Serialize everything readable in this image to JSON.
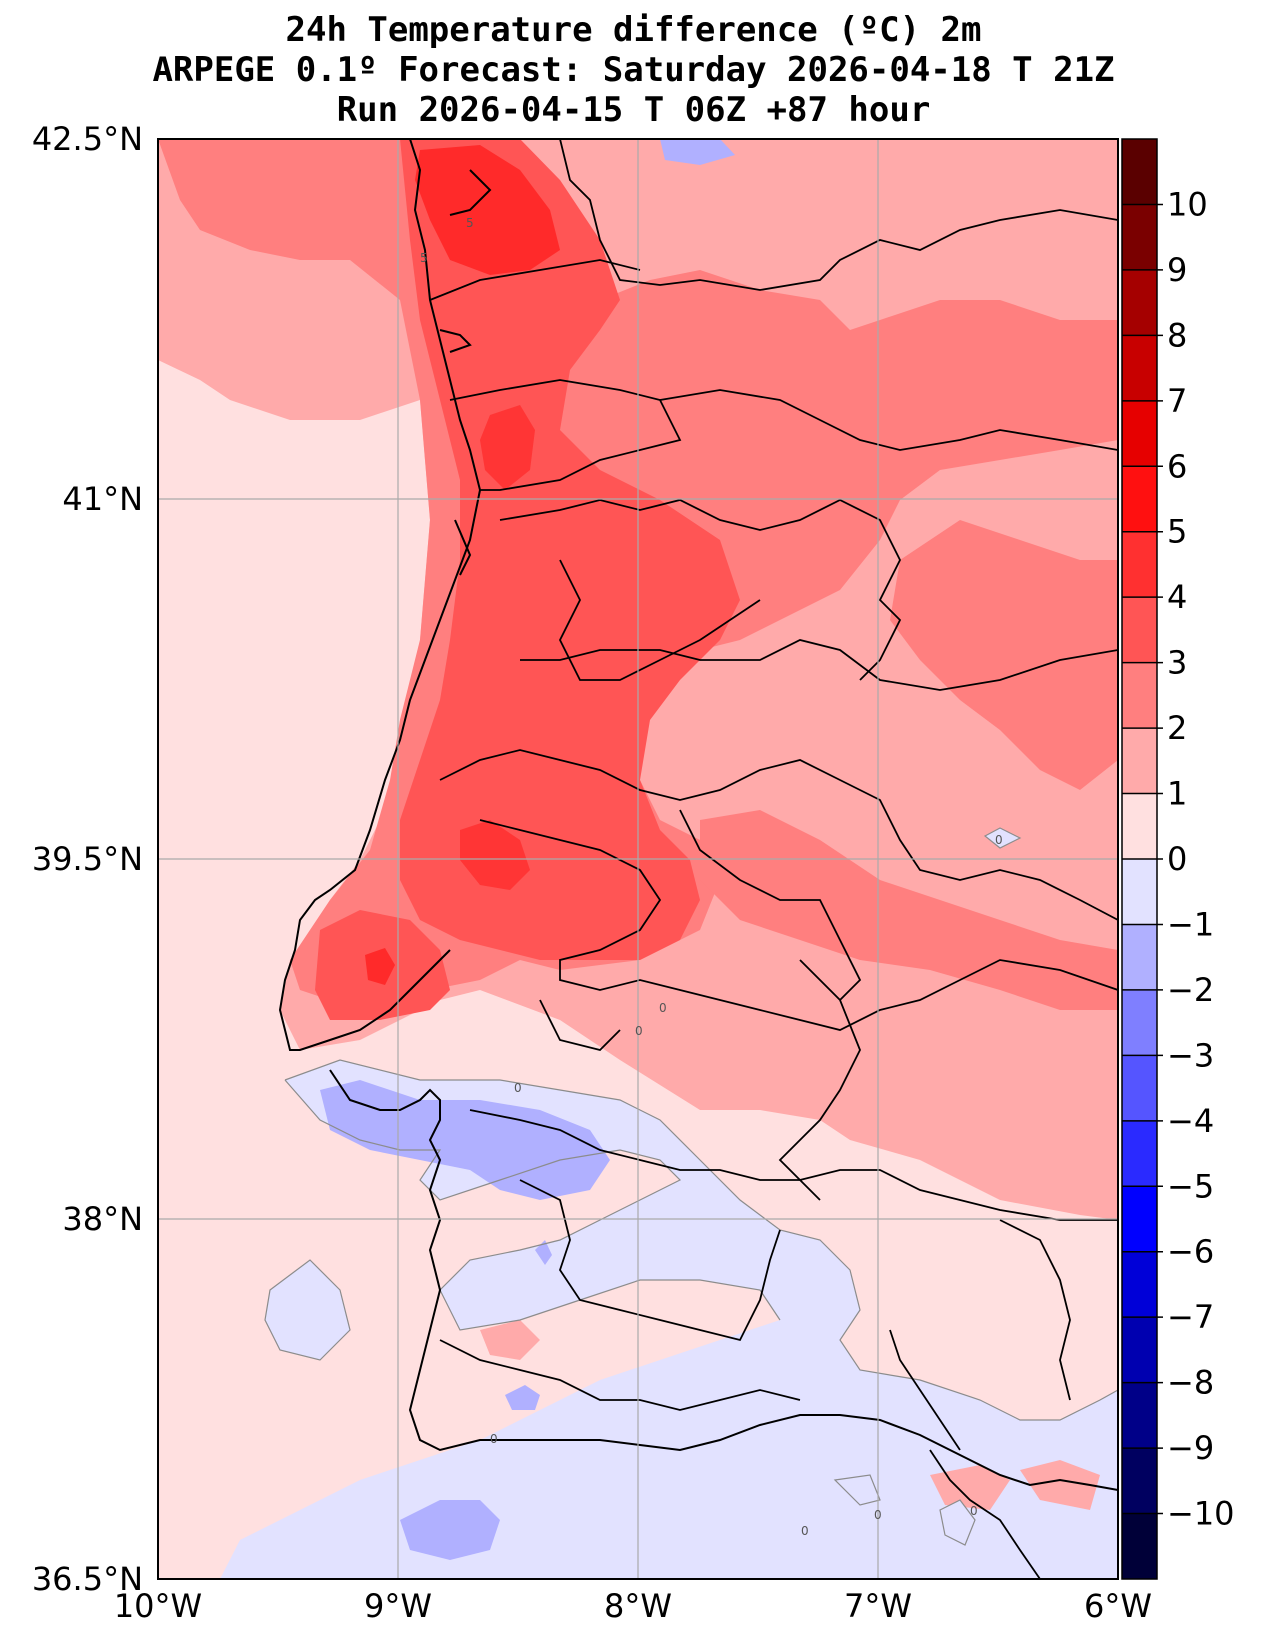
{
  "title": {
    "line1": "24h Temperature difference (ºC) 2m",
    "line2": "ARPEGE 0.1º Forecast: Saturday 2026-04-18 T 21Z",
    "line3": "Run 2026-04-15 T 06Z +87 hour"
  },
  "axes": {
    "lat_ticks": [
      "42.5°N",
      "41°N",
      "39.5°N",
      "38°N",
      "36.5°N"
    ],
    "lon_ticks": [
      "10°W",
      "9°W",
      "8°W",
      "7°W",
      "6°W"
    ]
  },
  "colorbar": {
    "labels": [
      "10",
      "9",
      "8",
      "7",
      "6",
      "5",
      "4",
      "3",
      "2",
      "1",
      "0",
      "−1",
      "−2",
      "−3",
      "−4",
      "−5",
      "−6",
      "−7",
      "−8",
      "−9",
      "−10"
    ],
    "colors": [
      "#7a0000",
      "#a50000",
      "#c80000",
      "#e60000",
      "#ff1010",
      "#ff3030",
      "#ff5555",
      "#ff7f7f",
      "#ffaaaa",
      "#ffe0e0",
      "#e2e2ff",
      "#b0b0ff",
      "#7f7fff",
      "#5555ff",
      "#2a2aff",
      "#0000ff",
      "#0000d8",
      "#0000b0",
      "#000088",
      "#000060",
      "#000038"
    ]
  },
  "contour_labels": [
    "5",
    "5",
    "0",
    "0",
    "0",
    "0",
    "0",
    "0",
    "0",
    "0"
  ]
}
